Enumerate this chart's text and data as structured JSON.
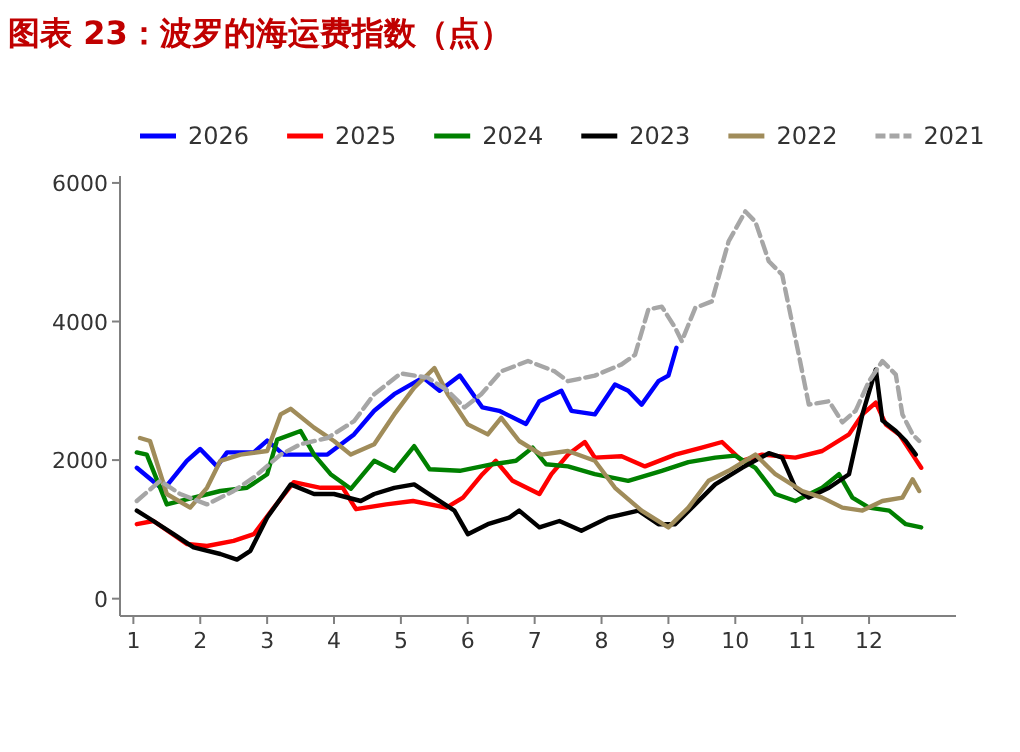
{
  "chart_data": {
    "type": "line",
    "title": "图表 23：波罗的海运费指数（点）",
    "xlim": [
      0.8,
      13.3
    ],
    "xticks": [
      1,
      2,
      3,
      4,
      5,
      6,
      7,
      8,
      9,
      10,
      11,
      12
    ],
    "ylim": [
      -250,
      6100
    ],
    "yticks": [
      0,
      2000,
      4000,
      6000
    ],
    "grid": false,
    "legend": "top",
    "marker": "none",
    "series": [
      {
        "name": "2026",
        "color": "#0000ff",
        "line_style": "solid",
        "x": [
          1.05,
          1.45,
          1.8,
          2.0,
          2.25,
          2.4,
          2.8,
          3.0,
          3.25,
          3.9,
          4.3,
          4.6,
          4.9,
          5.33,
          5.58,
          5.88,
          6.22,
          6.47,
          6.87,
          7.07,
          7.4,
          7.55,
          7.9,
          8.2,
          8.4,
          8.6,
          8.85,
          9.0,
          9.12
        ],
        "values": [
          1890,
          1570,
          1990,
          2160,
          1910,
          2110,
          2110,
          2280,
          2080,
          2080,
          2370,
          2710,
          2950,
          3190,
          3000,
          3220,
          2760,
          2710,
          2520,
          2850,
          3000,
          2710,
          2660,
          3090,
          3000,
          2800,
          3140,
          3220,
          3620
        ]
      },
      {
        "name": "2025",
        "color": "#ff0000",
        "line_style": "solid",
        "x": [
          1.05,
          1.3,
          1.8,
          2.1,
          2.5,
          2.8,
          3.1,
          3.4,
          3.8,
          4.13,
          4.33,
          4.78,
          5.18,
          5.68,
          5.93,
          6.22,
          6.42,
          6.67,
          7.07,
          7.25,
          7.5,
          7.75,
          7.9,
          8.3,
          8.65,
          9.1,
          9.5,
          9.8,
          10.1,
          10.4,
          10.9,
          11.3,
          11.7,
          11.9,
          12.1,
          12.25,
          12.45,
          12.65,
          12.78
        ],
        "values": [
          1075,
          1120,
          790,
          760,
          835,
          930,
          1315,
          1680,
          1600,
          1600,
          1290,
          1360,
          1410,
          1315,
          1460,
          1795,
          1990,
          1700,
          1510,
          1795,
          2080,
          2260,
          2035,
          2055,
          1910,
          2080,
          2180,
          2260,
          1990,
          2080,
          2035,
          2130,
          2370,
          2660,
          2830,
          2515,
          2370,
          2080,
          1890
        ]
      },
      {
        "name": "2024",
        "color": "#008000",
        "line_style": "solid",
        "x": [
          1.05,
          1.2,
          1.5,
          1.9,
          2.3,
          2.7,
          3.0,
          3.15,
          3.5,
          3.7,
          3.95,
          4.25,
          4.6,
          4.9,
          5.2,
          5.43,
          5.88,
          6.37,
          6.72,
          6.97,
          7.17,
          7.5,
          7.9,
          8.4,
          8.9,
          9.3,
          9.7,
          10.0,
          10.3,
          10.6,
          10.9,
          11.3,
          11.55,
          11.75,
          12.0,
          12.3,
          12.55,
          12.78
        ],
        "values": [
          2110,
          2080,
          1360,
          1460,
          1555,
          1600,
          1795,
          2295,
          2420,
          2080,
          1795,
          1585,
          1990,
          1845,
          2200,
          1870,
          1845,
          1940,
          1990,
          2180,
          1940,
          1910,
          1795,
          1700,
          1845,
          1970,
          2035,
          2065,
          1890,
          1510,
          1410,
          1600,
          1795,
          1460,
          1315,
          1270,
          1075,
          1030
        ]
      },
      {
        "name": "2023",
        "color": "#000000",
        "line_style": "solid",
        "x": [
          1.05,
          1.3,
          1.6,
          1.9,
          2.3,
          2.55,
          2.75,
          3.0,
          3.35,
          3.7,
          4.0,
          4.4,
          4.6,
          4.9,
          5.2,
          5.5,
          5.8,
          6.0,
          6.3,
          6.62,
          6.77,
          7.07,
          7.37,
          7.7,
          8.1,
          8.55,
          8.85,
          9.1,
          9.4,
          9.7,
          10.1,
          10.5,
          10.7,
          10.9,
          11.1,
          11.4,
          11.7,
          11.9,
          12.1,
          12.2,
          12.4,
          12.55,
          12.7
        ],
        "values": [
          1270,
          1120,
          930,
          740,
          645,
          565,
          690,
          1170,
          1650,
          1510,
          1510,
          1410,
          1510,
          1600,
          1650,
          1460,
          1270,
          930,
          1075,
          1170,
          1270,
          1030,
          1120,
          980,
          1170,
          1270,
          1075,
          1075,
          1360,
          1650,
          1890,
          2100,
          2035,
          1600,
          1460,
          1600,
          1795,
          2660,
          3310,
          2570,
          2420,
          2275,
          2080
        ]
      },
      {
        "name": "2022",
        "color": "#a08c5a",
        "line_style": "solid",
        "x": [
          1.1,
          1.25,
          1.5,
          1.85,
          2.1,
          2.3,
          2.6,
          3.0,
          3.2,
          3.35,
          3.7,
          4.0,
          4.25,
          4.6,
          4.9,
          5.2,
          5.5,
          5.7,
          6.0,
          6.3,
          6.5,
          6.77,
          7.1,
          7.5,
          7.9,
          8.2,
          8.6,
          9.0,
          9.3,
          9.6,
          9.9,
          10.3,
          10.6,
          11.0,
          11.3,
          11.6,
          11.9,
          12.2,
          12.5,
          12.65,
          12.75
        ],
        "values": [
          2320,
          2275,
          1510,
          1315,
          1600,
          1990,
          2080,
          2130,
          2660,
          2740,
          2470,
          2275,
          2080,
          2230,
          2660,
          3045,
          3330,
          2950,
          2515,
          2370,
          2610,
          2275,
          2080,
          2130,
          1990,
          1600,
          1270,
          1030,
          1315,
          1700,
          1845,
          2080,
          1795,
          1555,
          1460,
          1315,
          1270,
          1410,
          1460,
          1720,
          1555
        ]
      },
      {
        "name": "2021",
        "color": "#a6a6a6",
        "line_style": "dashed",
        "x": [
          1.05,
          1.4,
          1.7,
          2.1,
          2.5,
          2.8,
          3.2,
          3.5,
          3.9,
          4.3,
          4.6,
          5.0,
          5.4,
          5.7,
          5.95,
          6.2,
          6.5,
          6.9,
          7.3,
          7.5,
          7.9,
          8.3,
          8.5,
          8.7,
          8.9,
          9.1,
          9.2,
          9.4,
          9.65,
          9.9,
          10.15,
          10.3,
          10.5,
          10.7,
          10.95,
          11.1,
          11.4,
          11.6,
          11.8,
          12.0,
          12.2,
          12.4,
          12.5,
          12.65,
          12.75
        ],
        "values": [
          1410,
          1700,
          1510,
          1360,
          1555,
          1750,
          2080,
          2230,
          2320,
          2560,
          2950,
          3250,
          3190,
          3000,
          2760,
          2950,
          3280,
          3430,
          3280,
          3140,
          3220,
          3380,
          3520,
          4175,
          4215,
          3910,
          3715,
          4195,
          4290,
          5155,
          5590,
          5440,
          4870,
          4675,
          3520,
          2800,
          2850,
          2545,
          2710,
          3140,
          3430,
          3235,
          2660,
          2370,
          2275
        ]
      }
    ]
  }
}
